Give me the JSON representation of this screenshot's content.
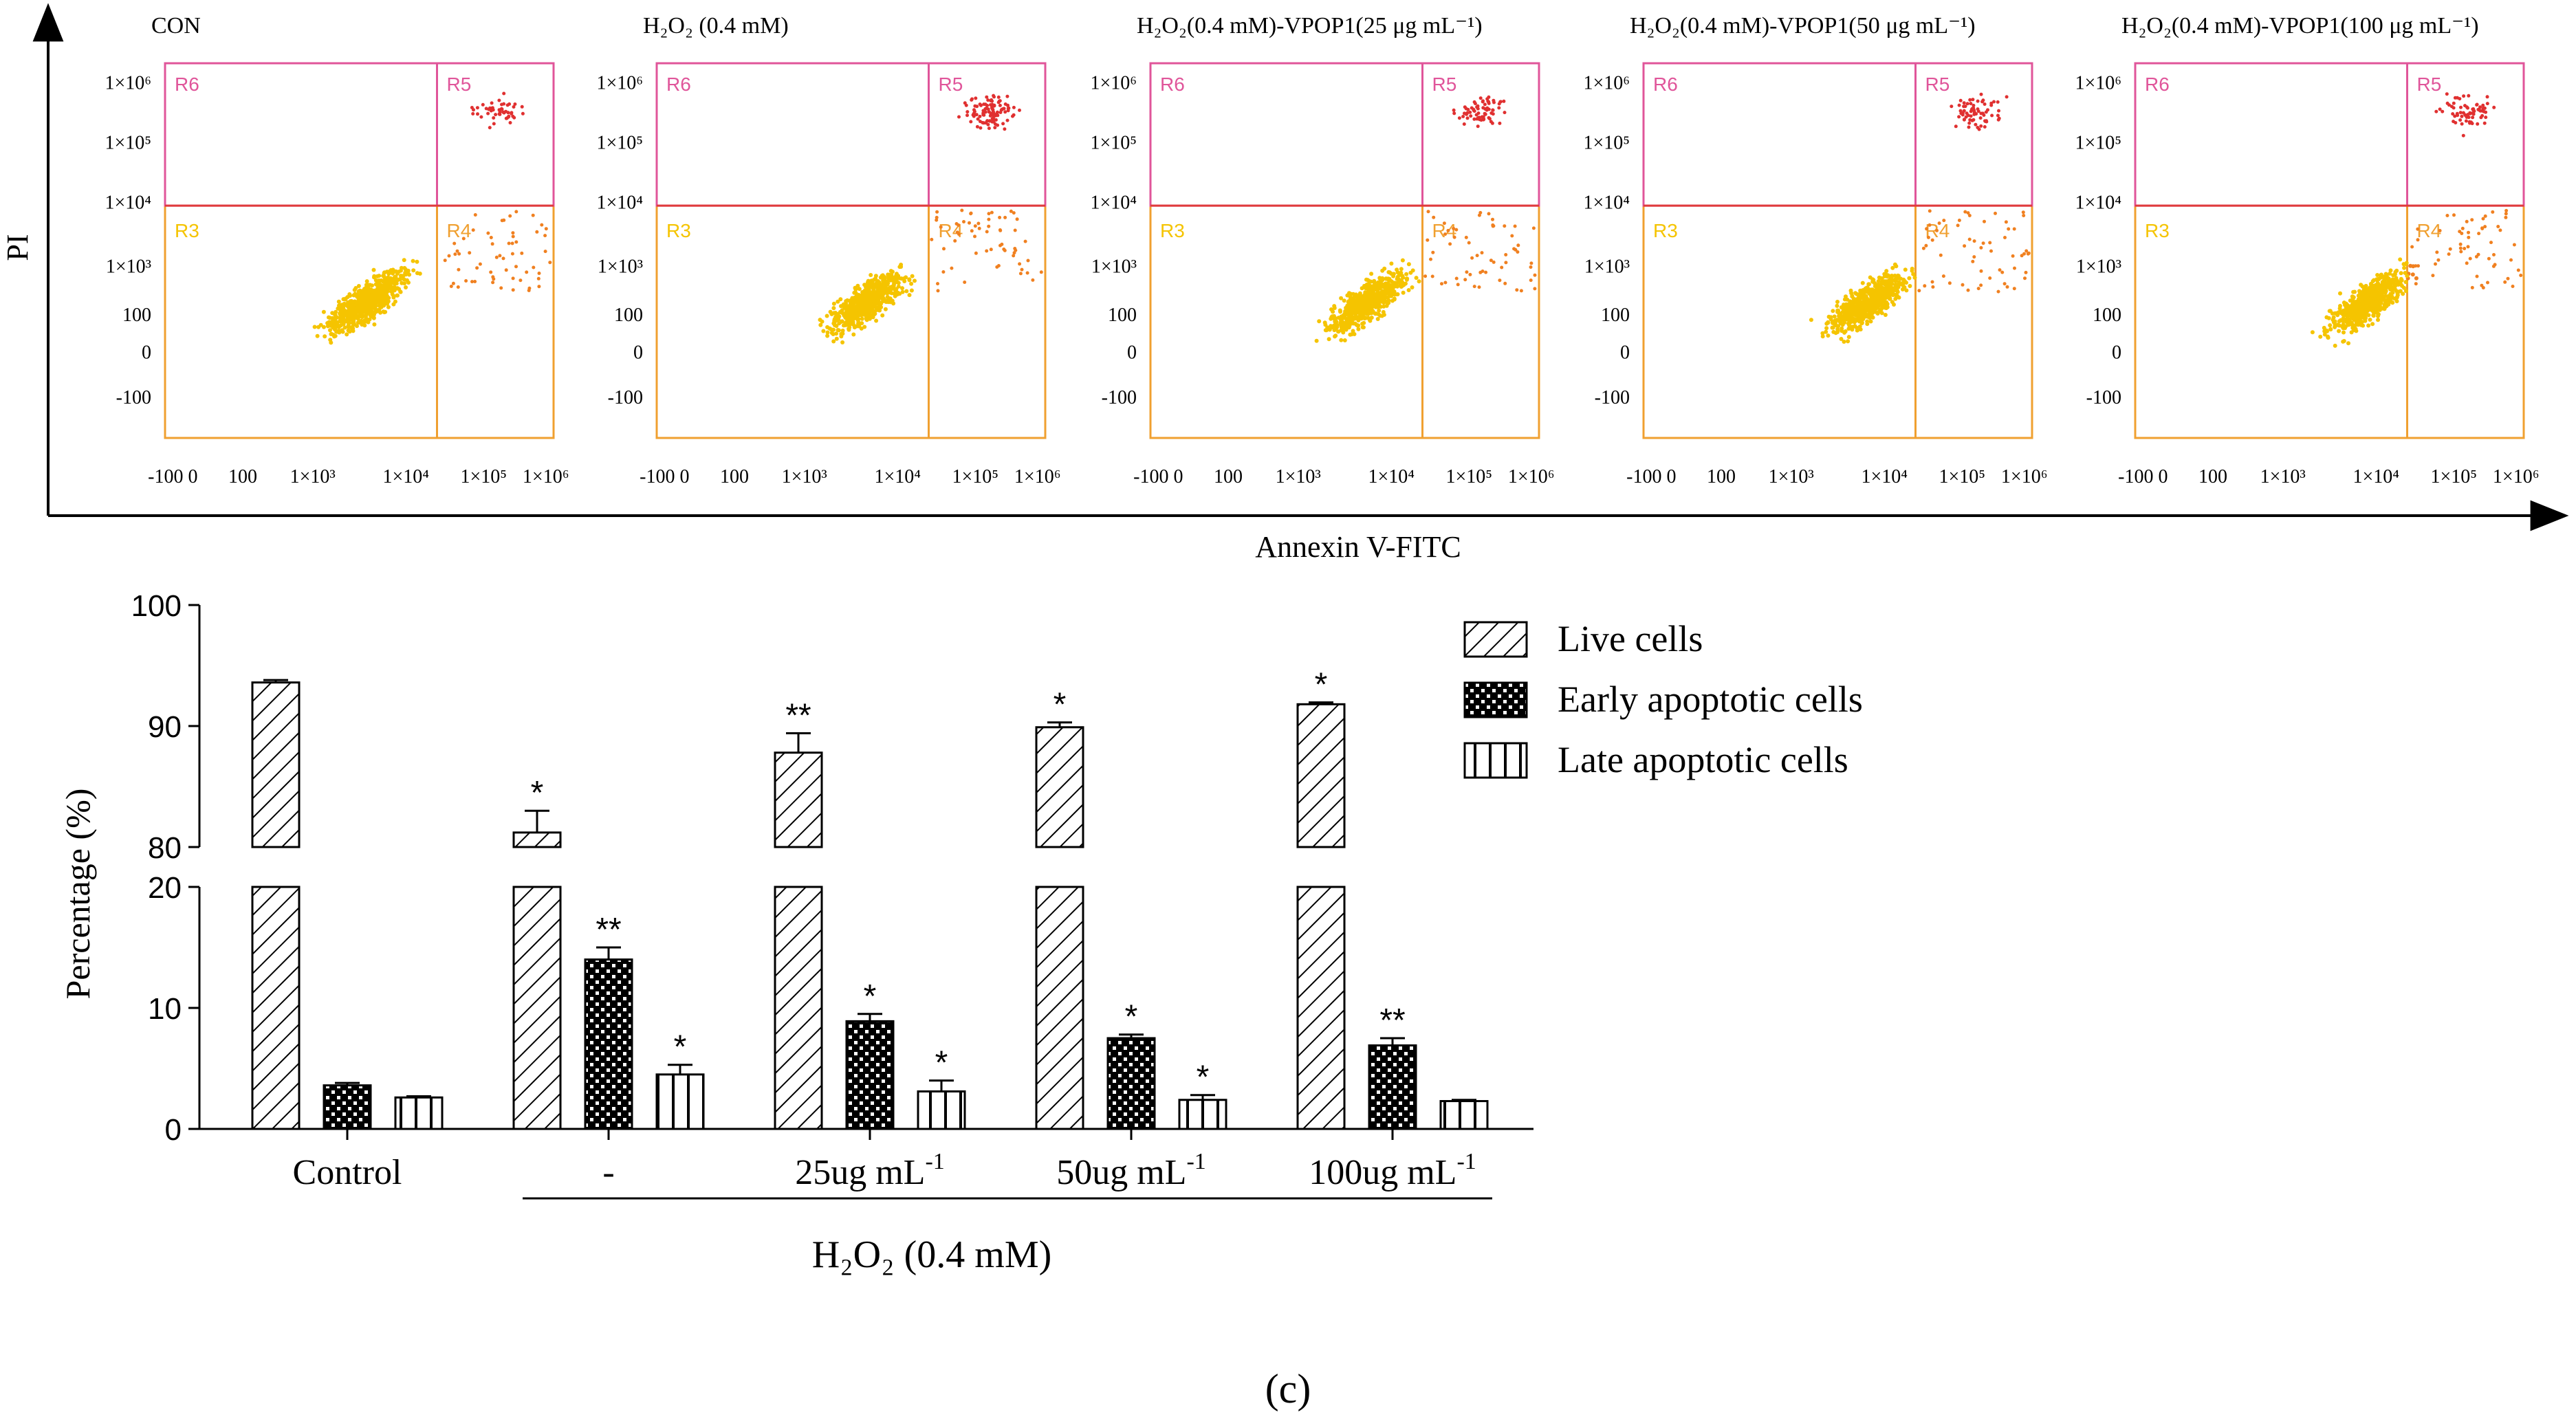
{
  "figure_label": "(c)",
  "flow": {
    "x_axis_label": "Annexin V-FITC",
    "y_axis_label": "PI",
    "x_ticks": [
      "-100 0",
      "100",
      "1×10³",
      "1×10⁴",
      "1×10⁵",
      "1×10⁶"
    ],
    "y_ticks": [
      "1×10⁶",
      "1×10⁵",
      "1×10⁴",
      "1×10³",
      "100",
      "0",
      "-100"
    ],
    "region_labels": [
      "R6",
      "R5",
      "R3",
      "R4"
    ],
    "panels": [
      {
        "title": "CON"
      },
      {
        "title": "H₂O₂ (0.4 mM)"
      },
      {
        "title": "H₂O₂(0.4 mM)-VPOP1(25 μg mL⁻¹)"
      },
      {
        "title": "H₂O₂(0.4 mM)-VPOP1(50 μg mL⁻¹)"
      },
      {
        "title": "H₂O₂(0.4 mM)-VPOP1(100 μg mL⁻¹)"
      }
    ],
    "colors": {
      "region_pink": "#e0559a",
      "gate_red": "#e03c3c",
      "gate_orange": "#f0a030",
      "live_dots": "#f5c400",
      "late_dots": "#e03030",
      "early_dots": "#f08020"
    }
  },
  "chart_data": {
    "type": "bar",
    "ylabel": "Percentage (%)",
    "ylim_upper": [
      80,
      100
    ],
    "ylim_lower": [
      0,
      20
    ],
    "upper_ticks": [
      "100",
      "90",
      "80"
    ],
    "lower_ticks": [
      "20",
      "10",
      "0"
    ],
    "categories": [
      "Control",
      "-",
      "25ug mL",
      "50ug mL",
      "100ug mL"
    ],
    "category_superscript": "-1",
    "group_label": "H₂O₂ (0.4 mM)",
    "series": [
      {
        "name": "Live cells",
        "pattern": "diagonal",
        "values": [
          93.6,
          81.2,
          87.8,
          89.9,
          91.8
        ],
        "errors": [
          0.2,
          1.8,
          1.6,
          0.4,
          0.15
        ],
        "sig": [
          "",
          "*",
          "**",
          "*",
          "*"
        ]
      },
      {
        "name": "Early apoptotic cells",
        "pattern": "checker",
        "values": [
          3.6,
          14.0,
          8.9,
          7.5,
          6.9
        ],
        "errors": [
          0.2,
          1.0,
          0.6,
          0.3,
          0.6
        ],
        "sig": [
          "",
          "**",
          "*",
          "*",
          "**"
        ]
      },
      {
        "name": "Late apoptotic cells",
        "pattern": "vertical",
        "values": [
          2.6,
          4.5,
          3.1,
          2.4,
          2.3
        ],
        "errors": [
          0.1,
          0.8,
          0.9,
          0.4,
          0.1
        ],
        "sig": [
          "",
          "*",
          "*",
          "*",
          ""
        ]
      }
    ]
  }
}
